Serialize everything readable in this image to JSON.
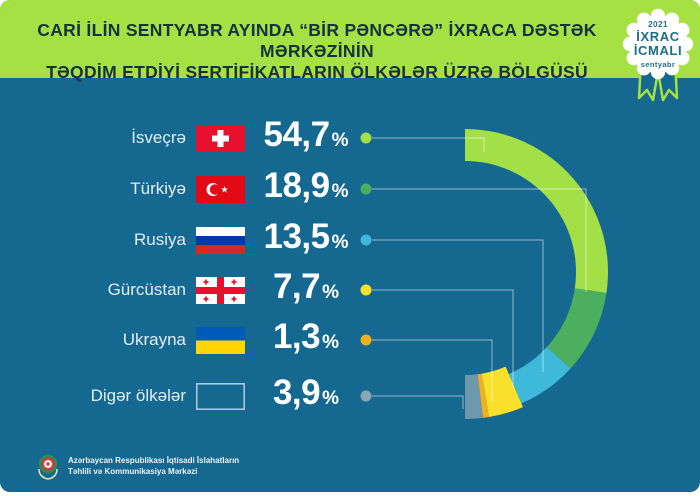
{
  "header": {
    "title_line1": "CARİ İLİN SENTYABR AYINDA “BİR PƏNCƏRƏ” İXRACA DƏSTƏK MƏRKƏZİNİN",
    "title_line2": "TƏQDİM ETDİYİ SERTİFİKATLARIN ÖLKƏLƏR ÜZRƏ BÖLGÜSÜ",
    "bg_color": "#a6e143",
    "text_color": "#16323c"
  },
  "badge": {
    "year": "2021",
    "title_line1": "İXRAC",
    "title_line2": "İCMALI",
    "month": "sentyabr",
    "text_color": "#1c6e86"
  },
  "chart_data": {
    "type": "pie",
    "variant": "half-donut",
    "title": "Cari ilin sentyabr ayında “Bir Pəncərə” İxraca Dəstək Mərkəzinin təqdim etdiyi sertifikatların ölkələr üzrə bölgüsü",
    "unit": "%",
    "arc_span_degrees": 180,
    "legend_position": "left",
    "categories": [
      "İsveçrə",
      "Türkiyə",
      "Rusiya",
      "Gürcüstan",
      "Ukrayna",
      "Digər ölkələr"
    ],
    "values": [
      54.7,
      18.9,
      13.5,
      7.7,
      1.3,
      3.9
    ],
    "value_labels": [
      "54,7",
      "18,9",
      "13,5",
      "7,7",
      "1,3",
      "3,9"
    ],
    "colors": [
      "#a3e048",
      "#4cae5e",
      "#3fb9da",
      "#f8e02b",
      "#eeb01e",
      "#8aa5b5"
    ],
    "flags": [
      "switzerland",
      "turkey",
      "russia",
      "georgia",
      "ukraine",
      "none"
    ]
  },
  "footer": {
    "org_line1": "Azərbaycan Respublikası İqtisadi İslahatların",
    "org_line2": "Təhlili və Kommunikasiya Mərkəzi"
  },
  "colors": {
    "background": "#15688f",
    "header_green": "#a6e143",
    "badge_white": "#ffffff",
    "text_white": "#ffffff",
    "leader_line": "rgba(255,255,255,0.45)"
  }
}
